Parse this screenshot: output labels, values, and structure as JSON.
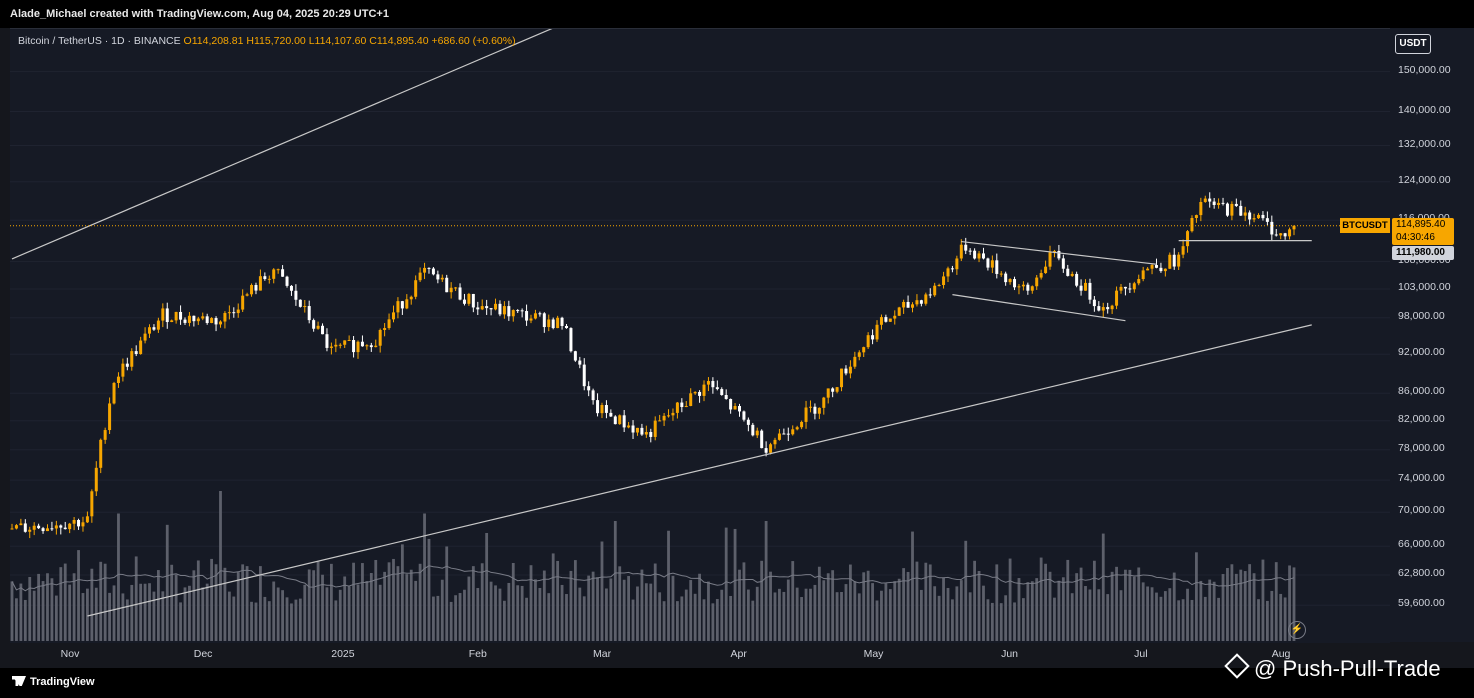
{
  "header": {
    "credit": "Alade_Michael created with TradingView.com, Aug 04, 2025 20:29 UTC+1"
  },
  "legend": {
    "symbol": "Bitcoin / TetherUS · 1D · BINANCE",
    "open": "O114,208.81",
    "high": "H115,720.00",
    "low": "L114,107.60",
    "close": "C114,895.40",
    "change": "+686.60 (+0.60%)"
  },
  "axis": {
    "currency": "USDT",
    "y_ticks": [
      "150,000.00",
      "140,000.00",
      "132,000.00",
      "124,000.00",
      "116,000.00",
      "108,000.00",
      "103,000.00",
      "98,000.00",
      "92,000.00",
      "86,000.00",
      "82,000.00",
      "78,000.00",
      "74,000.00",
      "70,000.00",
      "66,000.00",
      "62,800.00",
      "59,600.00"
    ],
    "x_ticks": [
      "Nov",
      "Dec",
      "2025",
      "Feb",
      "Mar",
      "Apr",
      "May",
      "Jun",
      "Jul",
      "Aug"
    ]
  },
  "markers": {
    "symbol_label": "BTCUSDT",
    "last_price": "114,895.40",
    "countdown": "04:30:46",
    "level_price": "111,980.00"
  },
  "footer": {
    "brand": "TradingView",
    "watermark": "@ Push-Pull-Trade"
  },
  "colors": {
    "up": "#f7a600",
    "down": "#ffffff",
    "background": "#161a25",
    "accent": "#f7a600",
    "trendline": "#c8c8c8"
  },
  "chart_data": {
    "type": "candlestick",
    "symbol": "Bitcoin / TetherUS",
    "interval": "1D",
    "exchange": "BINANCE",
    "scale": "log",
    "x_range": [
      "2024-10-19",
      "2025-08-04"
    ],
    "y_range": [
      58500,
      152000
    ],
    "price_anchors": [
      {
        "date": "2024-10-19",
        "close": 68000
      },
      {
        "date": "2024-11-05",
        "close": 69000
      },
      {
        "date": "2024-11-11",
        "close": 88000
      },
      {
        "date": "2024-11-22",
        "close": 98500
      },
      {
        "date": "2024-12-05",
        "close": 97500
      },
      {
        "date": "2024-12-17",
        "close": 106500
      },
      {
        "date": "2024-12-30",
        "close": 92500
      },
      {
        "date": "2025-01-09",
        "close": 94500
      },
      {
        "date": "2025-01-20",
        "close": 106000
      },
      {
        "date": "2025-02-01",
        "close": 100000
      },
      {
        "date": "2025-02-20",
        "close": 97000
      },
      {
        "date": "2025-02-27",
        "close": 84000
      },
      {
        "date": "2025-03-11",
        "close": 80000
      },
      {
        "date": "2025-03-25",
        "close": 87500
      },
      {
        "date": "2025-04-07",
        "close": 78500
      },
      {
        "date": "2025-04-20",
        "close": 85000
      },
      {
        "date": "2025-05-02",
        "close": 96500
      },
      {
        "date": "2025-05-15",
        "close": 103000
      },
      {
        "date": "2025-05-22",
        "close": 111000
      },
      {
        "date": "2025-06-05",
        "close": 102000
      },
      {
        "date": "2025-06-10",
        "close": 109500
      },
      {
        "date": "2025-06-22",
        "close": 99500
      },
      {
        "date": "2025-07-01",
        "close": 106500
      },
      {
        "date": "2025-07-09",
        "close": 108500
      },
      {
        "date": "2025-07-14",
        "close": 119500
      },
      {
        "date": "2025-07-25",
        "close": 117500
      },
      {
        "date": "2025-08-02",
        "close": 112500
      },
      {
        "date": "2025-08-04",
        "close": 114895.4
      }
    ],
    "volume_anchors": [
      {
        "date": "2024-11-12",
        "volume": 0.85
      },
      {
        "date": "2024-12-05",
        "volume": 1.0
      },
      {
        "date": "2025-01-20",
        "volume": 0.85
      },
      {
        "date": "2025-02-03",
        "volume": 0.72
      },
      {
        "date": "2025-03-04",
        "volume": 0.8
      },
      {
        "date": "2025-04-07",
        "volume": 0.8
      }
    ],
    "lines": [
      {
        "name": "channel-upper",
        "from": {
          "date": "2024-10-19",
          "price": 108500
        },
        "to": {
          "date": "2025-07-01",
          "price": 250000
        }
      },
      {
        "name": "channel-lower",
        "from": {
          "date": "2024-11-05",
          "price": 58500
        },
        "to": {
          "date": "2025-08-08",
          "price": 96800
        }
      },
      {
        "name": "wedge-top",
        "from": {
          "date": "2025-05-21",
          "price": 111800
        },
        "to": {
          "date": "2025-07-04",
          "price": 107500
        }
      },
      {
        "name": "wedge-bottom",
        "from": {
          "date": "2025-05-19",
          "price": 102000
        },
        "to": {
          "date": "2025-06-27",
          "price": 97500
        }
      },
      {
        "name": "support",
        "from": {
          "date": "2025-07-09",
          "price": 111980
        },
        "to": {
          "date": "2025-08-08",
          "price": 111980
        }
      }
    ],
    "last_price": 114895.4,
    "volume_ma": true
  }
}
